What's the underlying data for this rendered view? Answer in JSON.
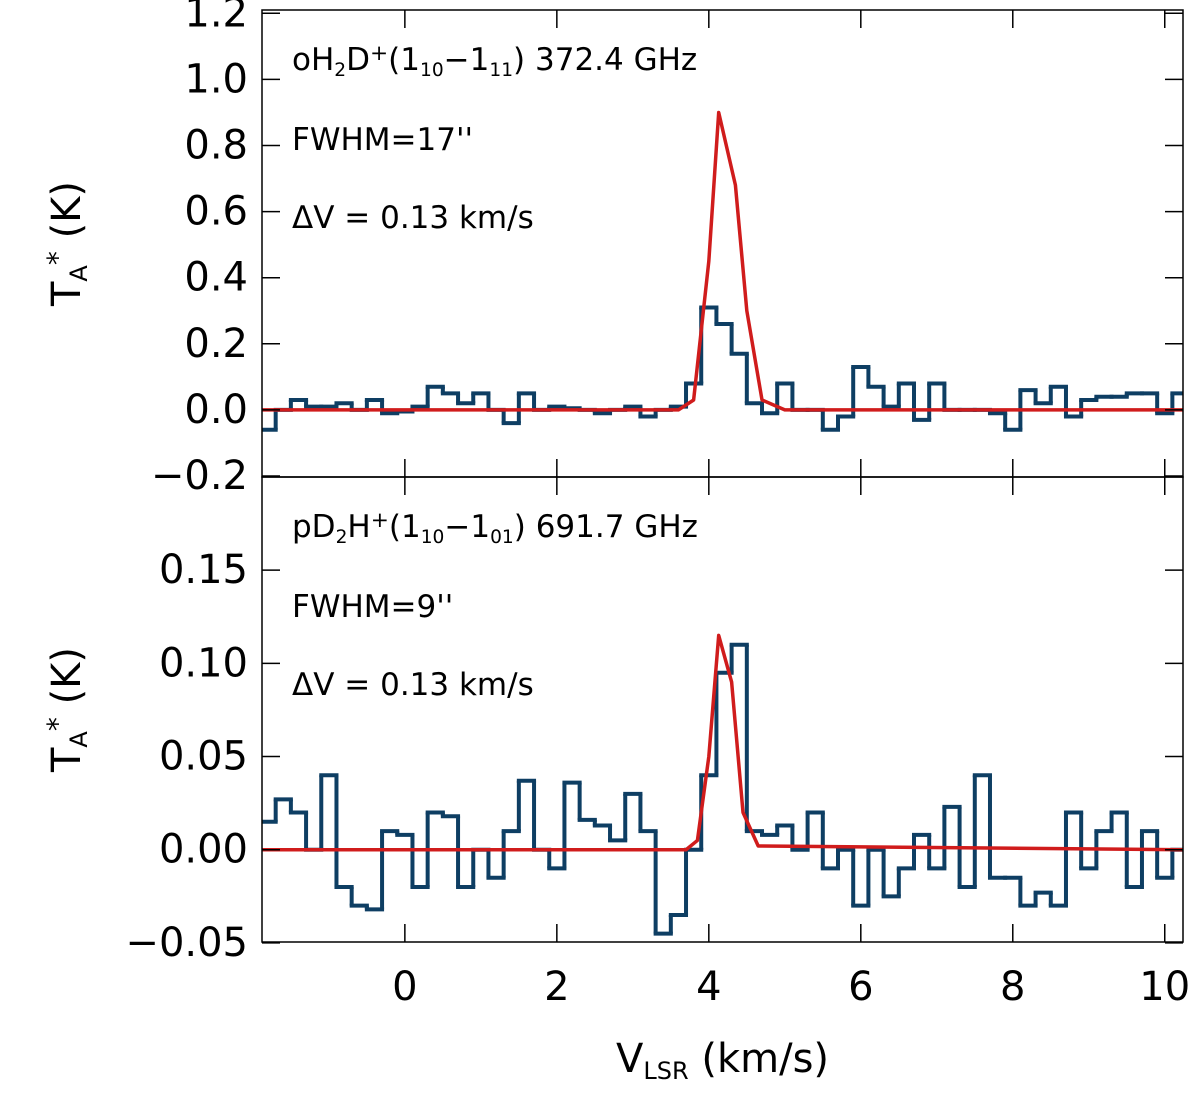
{
  "chart_data": [
    {
      "type": "step",
      "title": [
        "oH",
        {
          "sub": "2"
        },
        "D",
        {
          "sup": "+"
        },
        "(1",
        {
          "sub": "10"
        },
        "−1",
        {
          "sub": "11"
        },
        ") 372.4 GHz"
      ],
      "annotations": [
        [
          "FWHM=17''"
        ],
        [
          "ΔV = 0.13 km/s"
        ]
      ],
      "ylabel": [
        "T",
        {
          "sub": "A"
        },
        {
          "sup": "*"
        },
        " (K)"
      ],
      "xlim": [
        -1.88,
        10.24
      ],
      "ylim": [
        -0.203,
        1.21
      ],
      "xticks": [
        0,
        2,
        4,
        6,
        8,
        10
      ],
      "yticks": [
        {
          "value": -0.2,
          "label": "−0.2"
        },
        {
          "value": 0,
          "label": "0.0"
        },
        0.2,
        0.4,
        0.6,
        0.8,
        {
          "value": 1,
          "label": "1.0"
        },
        1.2
      ],
      "series": [
        {
          "color": "#0e3e63",
          "style": "steps",
          "x": [
            -1.8,
            -1.6,
            -1.4,
            -1.2,
            -1.0,
            -0.8,
            -0.6,
            -0.4,
            -0.2,
            0.0,
            0.2,
            0.4,
            0.6,
            0.8,
            1.0,
            1.2,
            1.4,
            1.6,
            1.8,
            2.0,
            2.2,
            2.4,
            2.6,
            2.8,
            3.0,
            3.2,
            3.4,
            3.6,
            3.8,
            4.0,
            4.2,
            4.4,
            4.6,
            4.8,
            5.0,
            5.2,
            5.4,
            5.6,
            5.8,
            6.0,
            6.2,
            6.4,
            6.6,
            6.8,
            7.0,
            7.2,
            7.4,
            7.6,
            7.8,
            8.0,
            8.2,
            8.4,
            8.6,
            8.8,
            9.0,
            9.2,
            9.4,
            9.6,
            9.8,
            10.0,
            10.2
          ],
          "values": [
            -0.06,
            0.0,
            0.03,
            0.01,
            0.01,
            0.02,
            0.0,
            0.03,
            -0.01,
            -0.005,
            0.01,
            0.07,
            0.05,
            0.02,
            0.05,
            0.0,
            -0.04,
            0.05,
            0.0,
            0.01,
            0.005,
            0.0,
            -0.01,
            0.0,
            0.01,
            -0.02,
            0.0,
            0.01,
            0.08,
            0.31,
            0.26,
            0.17,
            0.02,
            -0.01,
            0.08,
            0.0,
            0.0,
            -0.06,
            -0.02,
            0.13,
            0.07,
            0.01,
            0.08,
            -0.03,
            0.08,
            0.0,
            0.0,
            0.0,
            -0.01,
            -0.06,
            0.06,
            0.02,
            0.07,
            -0.02,
            0.03,
            0.04,
            0.04,
            0.05,
            0.05,
            -0.01,
            0.05
          ]
        },
        {
          "color": "#d01c1c",
          "style": "line",
          "x": [
            -1.88,
            3.6,
            3.8,
            4.0,
            4.13,
            4.35,
            4.5,
            4.7,
            5.0,
            10.24
          ],
          "values": [
            0,
            0,
            0.03,
            0.45,
            0.9,
            0.68,
            0.3,
            0.03,
            0,
            0
          ]
        }
      ]
    },
    {
      "type": "step",
      "title": [
        "pD",
        {
          "sub": "2"
        },
        "H",
        {
          "sup": "+"
        },
        "(1",
        {
          "sub": "10"
        },
        "−1",
        {
          "sub": "01"
        },
        ") 691.7 GHz"
      ],
      "annotations": [
        [
          "FWHM=9''"
        ],
        [
          "ΔV = 0.13 km/s"
        ]
      ],
      "ylabel": [
        "T",
        {
          "sub": "A"
        },
        {
          "sup": "*"
        },
        " (K)"
      ],
      "xlabel": [
        "V",
        {
          "sub": "LSR"
        },
        " (km/s)"
      ],
      "xlim": [
        -1.88,
        10.24
      ],
      "ylim": [
        -0.0495,
        0.2
      ],
      "xticks": [
        0,
        2,
        4,
        6,
        8,
        10
      ],
      "yticks": [
        {
          "value": -0.05,
          "label": "−0.05"
        },
        {
          "value": 0,
          "label": "0.00"
        },
        0.05,
        {
          "value": 0.1,
          "label": "0.10"
        },
        0.15
      ],
      "series": [
        {
          "color": "#0e3e63",
          "style": "steps",
          "x": [
            -1.8,
            -1.6,
            -1.4,
            -1.2,
            -1.0,
            -0.8,
            -0.6,
            -0.4,
            -0.2,
            0.0,
            0.2,
            0.4,
            0.6,
            0.8,
            1.0,
            1.2,
            1.4,
            1.6,
            1.8,
            2.0,
            2.2,
            2.4,
            2.6,
            2.8,
            3.0,
            3.2,
            3.4,
            3.6,
            3.8,
            4.0,
            4.2,
            4.4,
            4.6,
            4.8,
            5.0,
            5.2,
            5.4,
            5.6,
            5.8,
            6.0,
            6.2,
            6.4,
            6.6,
            6.8,
            7.0,
            7.2,
            7.4,
            7.6,
            7.8,
            8.0,
            8.2,
            8.4,
            8.6,
            8.8,
            9.0,
            9.2,
            9.4,
            9.6,
            9.8,
            10.0,
            10.2
          ],
          "values": [
            0.015,
            0.027,
            0.02,
            0.0,
            0.04,
            -0.02,
            -0.03,
            -0.032,
            0.01,
            0.008,
            -0.02,
            0.02,
            0.018,
            -0.02,
            0.0,
            -0.015,
            0.01,
            0.037,
            0.0,
            -0.01,
            0.036,
            0.016,
            0.013,
            0.005,
            0.03,
            0.01,
            -0.045,
            -0.035,
            0.0,
            0.04,
            0.095,
            0.11,
            0.01,
            0.008,
            0.013,
            0.0,
            0.02,
            -0.01,
            0.0,
            -0.03,
            0.0,
            -0.025,
            -0.01,
            0.008,
            -0.01,
            0.023,
            -0.02,
            0.04,
            -0.015,
            -0.015,
            -0.03,
            -0.023,
            -0.03,
            0.02,
            -0.01,
            0.01,
            0.02,
            -0.02,
            0.01,
            -0.015,
            0.0
          ]
        },
        {
          "color": "#d01c1c",
          "style": "line",
          "x": [
            -1.88,
            3.7,
            3.85,
            4.0,
            4.13,
            4.3,
            4.45,
            4.65,
            10.24
          ],
          "values": [
            0,
            0,
            0.005,
            0.05,
            0.115,
            0.09,
            0.02,
            0.002,
            0
          ]
        }
      ]
    }
  ]
}
